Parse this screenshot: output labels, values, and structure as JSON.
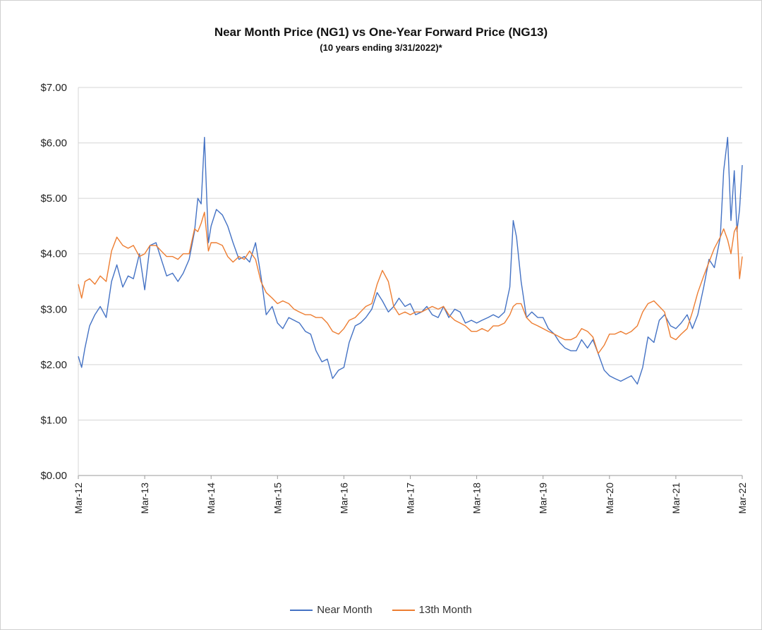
{
  "chart_data": {
    "type": "line",
    "title": "Near Month Price (NG1) vs One-Year Forward Price (NG13)",
    "subtitle": "(10 years ending 3/31/2022)*",
    "ylim": [
      0,
      7
    ],
    "y_ticks": [
      "$0.00",
      "$1.00",
      "$2.00",
      "$3.00",
      "$4.00",
      "$5.00",
      "$6.00",
      "$7.00"
    ],
    "x_ticks": [
      "Mar-12",
      "Mar-13",
      "Mar-14",
      "Mar-15",
      "Mar-16",
      "Mar-17",
      "Mar-18",
      "Mar-19",
      "Mar-20",
      "Mar-21",
      "Mar-22"
    ],
    "grid": true,
    "legend_position": "bottom",
    "series": [
      {
        "name": "Near Month",
        "color": "#4472C4",
        "points": [
          [
            0,
            2.15
          ],
          [
            0.05,
            1.95
          ],
          [
            0.1,
            2.3
          ],
          [
            0.17,
            2.7
          ],
          [
            0.25,
            2.9
          ],
          [
            0.33,
            3.05
          ],
          [
            0.42,
            2.85
          ],
          [
            0.5,
            3.5
          ],
          [
            0.58,
            3.8
          ],
          [
            0.67,
            3.4
          ],
          [
            0.75,
            3.6
          ],
          [
            0.83,
            3.55
          ],
          [
            0.92,
            4.0
          ],
          [
            1.0,
            3.35
          ],
          [
            1.08,
            4.15
          ],
          [
            1.17,
            4.2
          ],
          [
            1.25,
            3.9
          ],
          [
            1.33,
            3.6
          ],
          [
            1.42,
            3.65
          ],
          [
            1.5,
            3.5
          ],
          [
            1.58,
            3.65
          ],
          [
            1.67,
            3.9
          ],
          [
            1.75,
            4.4
          ],
          [
            1.8,
            5.0
          ],
          [
            1.85,
            4.9
          ],
          [
            1.9,
            6.1
          ],
          [
            1.96,
            4.2
          ],
          [
            2.0,
            4.5
          ],
          [
            2.08,
            4.8
          ],
          [
            2.17,
            4.7
          ],
          [
            2.25,
            4.5
          ],
          [
            2.33,
            4.2
          ],
          [
            2.42,
            3.9
          ],
          [
            2.5,
            3.95
          ],
          [
            2.58,
            3.85
          ],
          [
            2.67,
            4.2
          ],
          [
            2.75,
            3.6
          ],
          [
            2.83,
            2.9
          ],
          [
            2.92,
            3.05
          ],
          [
            3.0,
            2.75
          ],
          [
            3.08,
            2.65
          ],
          [
            3.17,
            2.85
          ],
          [
            3.25,
            2.8
          ],
          [
            3.33,
            2.75
          ],
          [
            3.42,
            2.6
          ],
          [
            3.5,
            2.55
          ],
          [
            3.58,
            2.25
          ],
          [
            3.67,
            2.05
          ],
          [
            3.75,
            2.1
          ],
          [
            3.83,
            1.75
          ],
          [
            3.92,
            1.9
          ],
          [
            4.0,
            1.95
          ],
          [
            4.08,
            2.4
          ],
          [
            4.17,
            2.7
          ],
          [
            4.25,
            2.75
          ],
          [
            4.33,
            2.85
          ],
          [
            4.42,
            3.0
          ],
          [
            4.5,
            3.3
          ],
          [
            4.58,
            3.15
          ],
          [
            4.67,
            2.95
          ],
          [
            4.75,
            3.05
          ],
          [
            4.83,
            3.2
          ],
          [
            4.92,
            3.05
          ],
          [
            5.0,
            3.1
          ],
          [
            5.08,
            2.9
          ],
          [
            5.17,
            2.95
          ],
          [
            5.25,
            3.05
          ],
          [
            5.33,
            2.9
          ],
          [
            5.42,
            2.85
          ],
          [
            5.5,
            3.05
          ],
          [
            5.58,
            2.85
          ],
          [
            5.67,
            3.0
          ],
          [
            5.75,
            2.95
          ],
          [
            5.83,
            2.75
          ],
          [
            5.92,
            2.8
          ],
          [
            6.0,
            2.75
          ],
          [
            6.08,
            2.8
          ],
          [
            6.17,
            2.85
          ],
          [
            6.25,
            2.9
          ],
          [
            6.33,
            2.85
          ],
          [
            6.42,
            2.95
          ],
          [
            6.5,
            3.4
          ],
          [
            6.55,
            4.6
          ],
          [
            6.6,
            4.3
          ],
          [
            6.67,
            3.5
          ],
          [
            6.75,
            2.85
          ],
          [
            6.83,
            2.95
          ],
          [
            6.92,
            2.85
          ],
          [
            7.0,
            2.85
          ],
          [
            7.08,
            2.65
          ],
          [
            7.17,
            2.55
          ],
          [
            7.25,
            2.4
          ],
          [
            7.33,
            2.3
          ],
          [
            7.42,
            2.25
          ],
          [
            7.5,
            2.25
          ],
          [
            7.58,
            2.45
          ],
          [
            7.67,
            2.3
          ],
          [
            7.75,
            2.45
          ],
          [
            7.83,
            2.2
          ],
          [
            7.92,
            1.9
          ],
          [
            8.0,
            1.8
          ],
          [
            8.08,
            1.75
          ],
          [
            8.17,
            1.7
          ],
          [
            8.25,
            1.75
          ],
          [
            8.33,
            1.8
          ],
          [
            8.42,
            1.65
          ],
          [
            8.5,
            1.95
          ],
          [
            8.58,
            2.5
          ],
          [
            8.67,
            2.4
          ],
          [
            8.75,
            2.8
          ],
          [
            8.83,
            2.9
          ],
          [
            8.92,
            2.7
          ],
          [
            9.0,
            2.65
          ],
          [
            9.08,
            2.75
          ],
          [
            9.17,
            2.9
          ],
          [
            9.25,
            2.65
          ],
          [
            9.33,
            2.9
          ],
          [
            9.42,
            3.4
          ],
          [
            9.5,
            3.9
          ],
          [
            9.58,
            3.75
          ],
          [
            9.67,
            4.3
          ],
          [
            9.72,
            5.5
          ],
          [
            9.78,
            6.1
          ],
          [
            9.83,
            4.6
          ],
          [
            9.88,
            5.5
          ],
          [
            9.92,
            4.4
          ],
          [
            9.96,
            4.8
          ],
          [
            10.0,
            5.6
          ]
        ]
      },
      {
        "name": "13th Month",
        "color": "#ED7D31",
        "points": [
          [
            0,
            3.45
          ],
          [
            0.05,
            3.2
          ],
          [
            0.1,
            3.5
          ],
          [
            0.17,
            3.55
          ],
          [
            0.25,
            3.45
          ],
          [
            0.33,
            3.6
          ],
          [
            0.42,
            3.5
          ],
          [
            0.5,
            4.05
          ],
          [
            0.58,
            4.3
          ],
          [
            0.67,
            4.15
          ],
          [
            0.75,
            4.1
          ],
          [
            0.83,
            4.15
          ],
          [
            0.92,
            3.95
          ],
          [
            1.0,
            4.0
          ],
          [
            1.08,
            4.15
          ],
          [
            1.17,
            4.15
          ],
          [
            1.25,
            4.05
          ],
          [
            1.33,
            3.95
          ],
          [
            1.42,
            3.95
          ],
          [
            1.5,
            3.9
          ],
          [
            1.58,
            4.0
          ],
          [
            1.67,
            4.0
          ],
          [
            1.75,
            4.45
          ],
          [
            1.8,
            4.4
          ],
          [
            1.85,
            4.55
          ],
          [
            1.9,
            4.75
          ],
          [
            1.96,
            4.05
          ],
          [
            2.0,
            4.2
          ],
          [
            2.08,
            4.2
          ],
          [
            2.17,
            4.15
          ],
          [
            2.25,
            3.95
          ],
          [
            2.33,
            3.85
          ],
          [
            2.42,
            3.95
          ],
          [
            2.5,
            3.9
          ],
          [
            2.58,
            4.05
          ],
          [
            2.67,
            3.9
          ],
          [
            2.75,
            3.5
          ],
          [
            2.83,
            3.3
          ],
          [
            2.92,
            3.2
          ],
          [
            3.0,
            3.1
          ],
          [
            3.08,
            3.15
          ],
          [
            3.17,
            3.1
          ],
          [
            3.25,
            3.0
          ],
          [
            3.33,
            2.95
          ],
          [
            3.42,
            2.9
          ],
          [
            3.5,
            2.9
          ],
          [
            3.58,
            2.85
          ],
          [
            3.67,
            2.85
          ],
          [
            3.75,
            2.75
          ],
          [
            3.83,
            2.6
          ],
          [
            3.92,
            2.55
          ],
          [
            4.0,
            2.65
          ],
          [
            4.08,
            2.8
          ],
          [
            4.17,
            2.85
          ],
          [
            4.25,
            2.95
          ],
          [
            4.33,
            3.05
          ],
          [
            4.42,
            3.1
          ],
          [
            4.5,
            3.45
          ],
          [
            4.58,
            3.7
          ],
          [
            4.67,
            3.5
          ],
          [
            4.75,
            3.05
          ],
          [
            4.83,
            2.9
          ],
          [
            4.92,
            2.95
          ],
          [
            5.0,
            2.9
          ],
          [
            5.08,
            2.95
          ],
          [
            5.17,
            2.95
          ],
          [
            5.25,
            3.0
          ],
          [
            5.33,
            3.05
          ],
          [
            5.42,
            3.0
          ],
          [
            5.5,
            3.05
          ],
          [
            5.58,
            2.9
          ],
          [
            5.67,
            2.8
          ],
          [
            5.75,
            2.75
          ],
          [
            5.83,
            2.7
          ],
          [
            5.92,
            2.6
          ],
          [
            6.0,
            2.6
          ],
          [
            6.08,
            2.65
          ],
          [
            6.17,
            2.6
          ],
          [
            6.25,
            2.7
          ],
          [
            6.33,
            2.7
          ],
          [
            6.42,
            2.75
          ],
          [
            6.5,
            2.9
          ],
          [
            6.55,
            3.05
          ],
          [
            6.6,
            3.1
          ],
          [
            6.67,
            3.1
          ],
          [
            6.75,
            2.85
          ],
          [
            6.83,
            2.75
          ],
          [
            6.92,
            2.7
          ],
          [
            7.0,
            2.65
          ],
          [
            7.08,
            2.6
          ],
          [
            7.17,
            2.55
          ],
          [
            7.25,
            2.5
          ],
          [
            7.33,
            2.45
          ],
          [
            7.42,
            2.45
          ],
          [
            7.5,
            2.5
          ],
          [
            7.58,
            2.65
          ],
          [
            7.67,
            2.6
          ],
          [
            7.75,
            2.5
          ],
          [
            7.83,
            2.2
          ],
          [
            7.92,
            2.35
          ],
          [
            8.0,
            2.55
          ],
          [
            8.08,
            2.55
          ],
          [
            8.17,
            2.6
          ],
          [
            8.25,
            2.55
          ],
          [
            8.33,
            2.6
          ],
          [
            8.42,
            2.7
          ],
          [
            8.5,
            2.95
          ],
          [
            8.58,
            3.1
          ],
          [
            8.67,
            3.15
          ],
          [
            8.75,
            3.05
          ],
          [
            8.83,
            2.95
          ],
          [
            8.92,
            2.5
          ],
          [
            9.0,
            2.45
          ],
          [
            9.08,
            2.55
          ],
          [
            9.17,
            2.65
          ],
          [
            9.25,
            2.95
          ],
          [
            9.33,
            3.3
          ],
          [
            9.42,
            3.6
          ],
          [
            9.5,
            3.85
          ],
          [
            9.58,
            4.1
          ],
          [
            9.67,
            4.3
          ],
          [
            9.72,
            4.45
          ],
          [
            9.78,
            4.25
          ],
          [
            9.83,
            4.0
          ],
          [
            9.88,
            4.4
          ],
          [
            9.92,
            4.5
          ],
          [
            9.96,
            3.55
          ],
          [
            10.0,
            3.95
          ]
        ]
      }
    ]
  }
}
